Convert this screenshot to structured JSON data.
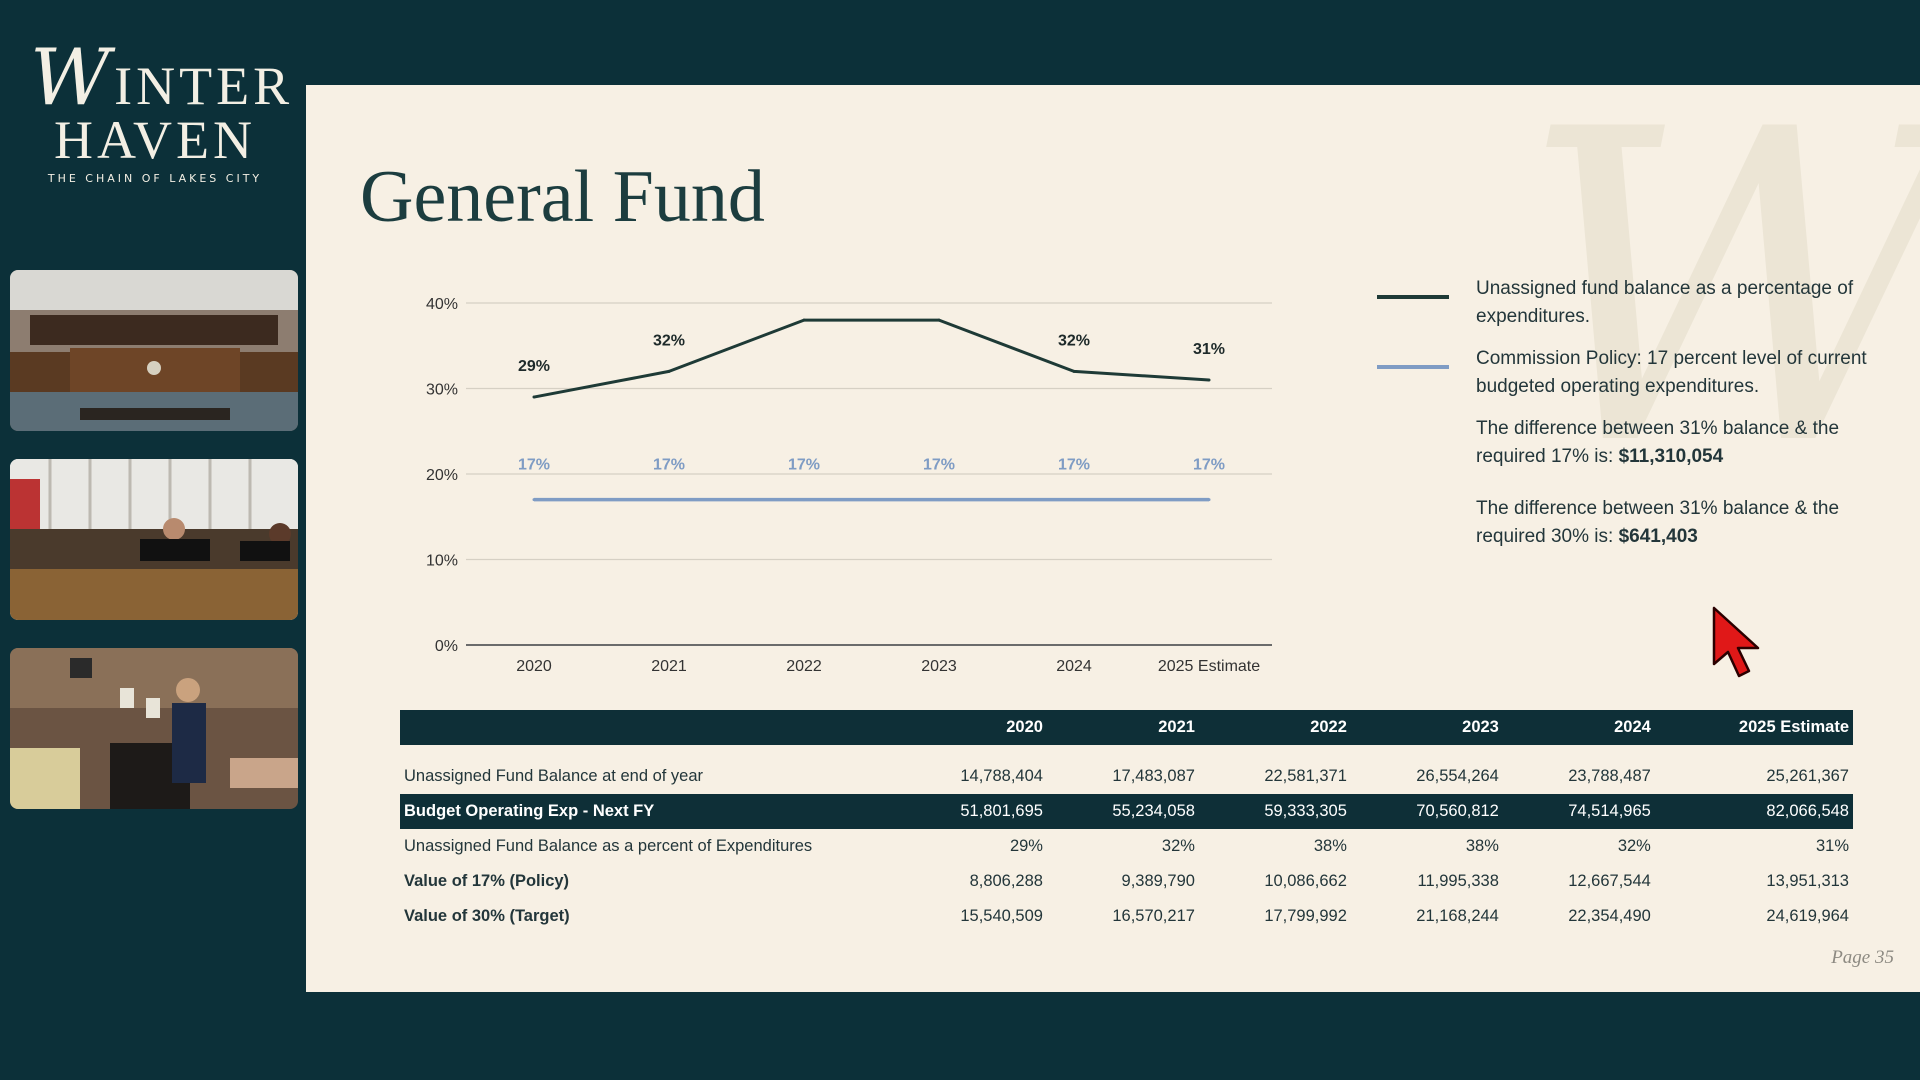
{
  "logo": {
    "line1_initial": "W",
    "line1_rest": "INTER",
    "line2": "HAVEN",
    "tagline": "THE CHAIN OF LAKES CITY"
  },
  "slide": {
    "title": "General Fund",
    "watermark": "W",
    "page": "Page 35"
  },
  "legend": {
    "series1": "Unassigned fund balance as a percentage of expenditures.",
    "series2": "Commission Policy: 17 percent level of current budgeted operating expenditures.",
    "note1_text": "The difference between 31% balance & the required 17% is: ",
    "note1_value": "$11,310,054",
    "note2_text": "The difference between 31% balance & the required 30% is: ",
    "note2_value": "$641,403"
  },
  "colors": {
    "sidebar_bg": "#0c3039",
    "slide_bg": "#f7f0e4",
    "series1": "#1e3a36",
    "series2": "#7f9cc4",
    "table_dark": "#0e2f37"
  },
  "chart_data": {
    "type": "line",
    "categories": [
      "2020",
      "2021",
      "2022",
      "2023",
      "2024",
      "2025 Estimate"
    ],
    "series": [
      {
        "name": "Unassigned fund balance as a percentage of expenditures.",
        "values": [
          29,
          32,
          38,
          38,
          32,
          31
        ],
        "labels": [
          "29%",
          "32%",
          "",
          "",
          "32%",
          "31%"
        ]
      },
      {
        "name": "Commission Policy: 17 percent level of current budgeted operating expenditures.",
        "values": [
          17,
          17,
          17,
          17,
          17,
          17
        ],
        "labels": [
          "17%",
          "17%",
          "17%",
          "17%",
          "17%",
          "17%"
        ]
      }
    ],
    "yticks": [
      "0%",
      "10%",
      "20%",
      "30%",
      "40%"
    ],
    "ylim": [
      0,
      40
    ],
    "grid": true
  },
  "table": {
    "headers": [
      "",
      "2020",
      "2021",
      "2022",
      "2023",
      "2024",
      "2025 Estimate"
    ],
    "rows": [
      {
        "label": "Unassigned Fund Balance at end of year",
        "values": [
          "14,788,404",
          "17,483,087",
          "22,581,371",
          "26,554,264",
          "23,788,487",
          "25,261,367"
        ]
      },
      {
        "label": "Budget Operating Exp - Next FY",
        "values": [
          "51,801,695",
          "55,234,058",
          "59,333,305",
          "70,560,812",
          "74,514,965",
          "82,066,548"
        ]
      },
      {
        "label": "Unassigned Fund Balance as a percent of Expenditures",
        "values": [
          "29%",
          "32%",
          "38%",
          "38%",
          "32%",
          "31%"
        ]
      },
      {
        "label": "Value of 17% (Policy)",
        "values": [
          "8,806,288",
          "9,389,790",
          "10,086,662",
          "11,995,338",
          "12,667,544",
          "13,951,313"
        ]
      },
      {
        "label": "Value of 30% (Target)",
        "values": [
          "15,540,509",
          "16,570,217",
          "17,799,992",
          "21,168,244",
          "22,354,490",
          "24,619,964"
        ]
      }
    ]
  }
}
